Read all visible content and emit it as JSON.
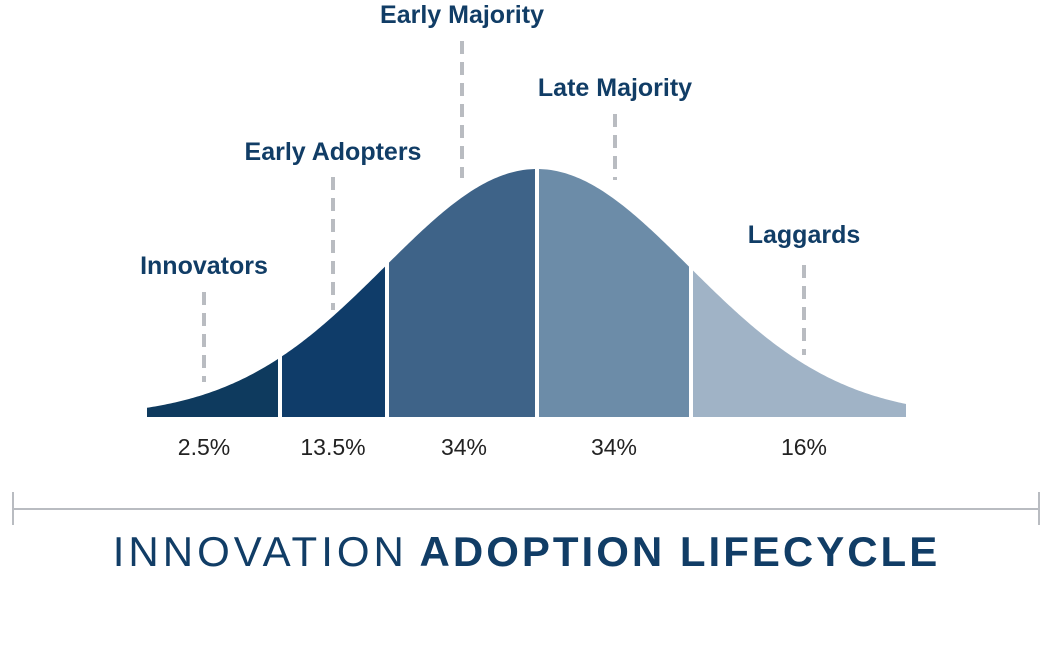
{
  "chart_data": {
    "type": "area",
    "segments": [
      {
        "name": "Innovators",
        "percent": "2.5%",
        "color": "#0e3a5e"
      },
      {
        "name": "Early Adopters",
        "percent": "13.5%",
        "color": "#0f3c69"
      },
      {
        "name": "Early Majority",
        "percent": "34%",
        "color": "#3e6388"
      },
      {
        "name": "Late Majority",
        "percent": "34%",
        "color": "#6c8ca8"
      },
      {
        "name": "Laggards",
        "percent": "16%",
        "color": "#a0b3c6"
      }
    ]
  },
  "title": {
    "light": "INNOVATION",
    "bold": "ADOPTION LIFECYCLE"
  },
  "colors": {
    "label_text": "#113d66",
    "leader_lines": "#b9bcc1"
  }
}
